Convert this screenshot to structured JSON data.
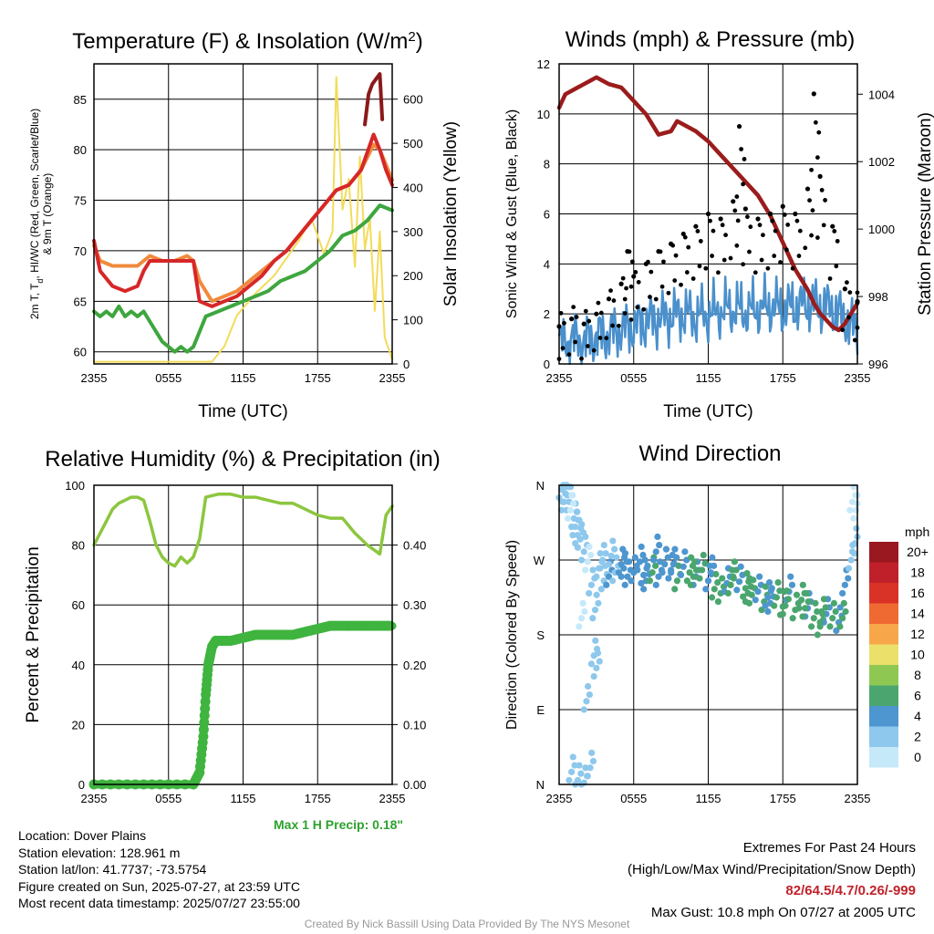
{
  "chart_data": [
    {
      "type": "line",
      "title": "Temperature (F) & Insolation (W/m",
      "title_sup": "2",
      "title_tail": ")",
      "xlabel": "Time (UTC)",
      "ylabel_left_line1": "2m T, T",
      "ylabel_left_sub": "d",
      "ylabel_left_line1_tail": ", HI/WC (Red, Green, Scarlet/Blue)",
      "ylabel_left_line2": "& 9m T (Orange)",
      "ylabel_right": "Solar Insolation (Yellow)",
      "xticks": [
        "2355",
        "0555",
        "1155",
        "1755",
        "2355"
      ],
      "yticks_left": [
        60,
        65,
        70,
        75,
        80,
        85
      ],
      "yticks_right": [
        0,
        100,
        200,
        300,
        400,
        500,
        600
      ],
      "ylim_left": [
        58.8,
        88.5
      ],
      "ylim_right": [
        0,
        680
      ],
      "xlim": [
        0,
        24
      ],
      "grid": true,
      "colors": {
        "temp": "#d62728",
        "dew": "#3ea63e",
        "t9m": "#f08a3c",
        "hi": "#8b1a1a",
        "solar": "#f2dc5a"
      },
      "series": [
        {
          "key": "solar",
          "axis": "right",
          "x": [
            0,
            6.5,
            9.5,
            10.5,
            11.5,
            13,
            14.5,
            15.5,
            16.5,
            17.5,
            18.5,
            19.2,
            19.5,
            20,
            20.5,
            21,
            21.4,
            21.8,
            22.2,
            22.6,
            23,
            23.4,
            24
          ],
          "values": [
            5,
            5,
            5,
            40,
            110,
            160,
            200,
            240,
            280,
            330,
            250,
            300,
            650,
            350,
            420,
            220,
            470,
            260,
            330,
            120,
            300,
            60,
            10
          ]
        },
        {
          "key": "t9m",
          "axis": "left",
          "x": [
            0,
            0.5,
            1.5,
            2.5,
            3.5,
            4.5,
            5.5,
            6.5,
            7.5,
            8,
            8.5,
            9.5,
            10.5,
            11.5,
            12.5,
            13.5,
            14.5,
            15.5,
            16.5,
            17.5,
            18.5,
            19.5,
            20.5,
            21.5,
            22.5,
            23,
            23.5,
            24
          ],
          "values": [
            70.5,
            69,
            68.5,
            68.5,
            68.5,
            69.5,
            69,
            69,
            69.5,
            69,
            67,
            65,
            65.5,
            66,
            67,
            68,
            69,
            70,
            71.5,
            73,
            74.5,
            76,
            76.5,
            78,
            80.5,
            80,
            78.5,
            77
          ]
        },
        {
          "key": "temp",
          "axis": "left",
          "x": [
            0,
            0.5,
            1.5,
            2.5,
            3.5,
            4,
            4.5,
            5.5,
            6.5,
            7.5,
            8,
            8.5,
            9.5,
            10.5,
            11.5,
            12.5,
            13.5,
            14.5,
            15.5,
            16.5,
            17.5,
            18.5,
            19.5,
            20.5,
            21.5,
            22.5,
            23,
            23.5,
            24
          ],
          "values": [
            71,
            68,
            66.5,
            66,
            66.5,
            68,
            69,
            69,
            69,
            69,
            69,
            65,
            64.5,
            65,
            65.5,
            66.5,
            67.5,
            69,
            70,
            71.5,
            73,
            74.5,
            76,
            76.5,
            78,
            81.5,
            80,
            78,
            76.5
          ]
        },
        {
          "key": "dew",
          "axis": "left",
          "x": [
            0,
            0.5,
            1,
            1.5,
            2,
            2.5,
            3,
            3.5,
            4,
            4.5,
            5,
            5.5,
            6,
            6.5,
            7,
            7.5,
            8,
            8.5,
            9,
            10,
            11,
            12,
            13,
            14,
            15,
            16,
            17,
            18,
            19,
            20,
            21,
            22,
            23,
            24
          ],
          "values": [
            64,
            63.5,
            64,
            63.5,
            64.5,
            63.5,
            64,
            63.5,
            64,
            63,
            62,
            61,
            60.5,
            60,
            60.5,
            60,
            60.5,
            62,
            63.5,
            64,
            64.5,
            65,
            65.5,
            66,
            67,
            67.5,
            68,
            69,
            70,
            71.5,
            72,
            73,
            74.5,
            74
          ]
        },
        {
          "key": "hi",
          "axis": "left",
          "x": [
            21.8,
            22.1,
            22.4,
            22.7,
            23,
            23.2
          ],
          "values": [
            82.5,
            85.5,
            86.5,
            87,
            87.5,
            83
          ]
        }
      ]
    },
    {
      "type": "line",
      "title": "Winds (mph) & Pressure (mb)",
      "xlabel": "Time (UTC)",
      "ylabel_left": "Sonic Wind & Gust (Blue, Black)",
      "ylabel_right": "Station Pressure (Maroon)",
      "xticks": [
        "2355",
        "0555",
        "1155",
        "1755",
        "2355"
      ],
      "yticks_left": [
        0,
        2,
        4,
        6,
        8,
        10,
        12
      ],
      "yticks_right": [
        996,
        998,
        1000,
        1002,
        1004
      ],
      "ylim_left": [
        0,
        12
      ],
      "ylim_right": [
        996,
        1004.9
      ],
      "xlim": [
        0,
        24
      ],
      "grid": true,
      "colors": {
        "wind": "#4a90cc",
        "gust": "#000000",
        "pressure": "#9b1c1c"
      },
      "series": [
        {
          "key": "pressure",
          "axis": "right",
          "x": [
            0,
            0.5,
            1,
            1.5,
            2,
            2.5,
            3,
            3.5,
            4,
            5,
            6,
            7,
            8,
            9,
            9.5,
            10,
            11,
            12,
            13,
            14,
            15,
            16,
            17,
            18,
            19,
            20,
            20.5,
            21,
            21.5,
            22,
            22.5,
            23,
            23.5,
            24
          ],
          "values": [
            1003.6,
            1004,
            1004.1,
            1004.2,
            1004.3,
            1004.4,
            1004.5,
            1004.4,
            1004.3,
            1004.2,
            1003.8,
            1003.4,
            1002.8,
            1002.9,
            1003.2,
            1003.1,
            1002.9,
            1002.6,
            1002.2,
            1001.8,
            1001.4,
            1001,
            1000.4,
            999.6,
            998.8,
            998.2,
            997.8,
            997.5,
            997.3,
            997.1,
            997,
            997.2,
            997.5,
            997.8
          ]
        },
        {
          "key": "wind",
          "axis": "left",
          "x": [
            0,
            1,
            2,
            3,
            4,
            5,
            6,
            7,
            8,
            9,
            10,
            11,
            12,
            13,
            14,
            15,
            16,
            17,
            18,
            19,
            20,
            21,
            22,
            23,
            24
          ],
          "values": [
            0.8,
            1.0,
            0.9,
            1.1,
            1.2,
            1.4,
            1.5,
            1.7,
            1.8,
            1.9,
            2.0,
            1.9,
            2.0,
            2.1,
            2.2,
            2.1,
            2.2,
            2.3,
            2.2,
            2.3,
            2.4,
            2.3,
            2.2,
            1.8,
            1.3
          ]
        },
        {
          "key": "gust",
          "axis": "left",
          "x": [
            0,
            1,
            2,
            3,
            4,
            5,
            5.5,
            6,
            7,
            8,
            9,
            10,
            11,
            12,
            13,
            14,
            14.5,
            15,
            16,
            17,
            18,
            19,
            20,
            20.5,
            21,
            22,
            23,
            24
          ],
          "values": [
            1.5,
            1.8,
            1.6,
            2.0,
            2.6,
            3.2,
            4.5,
            3.5,
            4.0,
            4.5,
            4.8,
            5.2,
            5.5,
            6.0,
            5.8,
            6.5,
            9.5,
            6.2,
            5.8,
            6.0,
            6.3,
            6.0,
            7.0,
            10.8,
            7.5,
            5.5,
            3.0,
            2.5
          ]
        }
      ]
    },
    {
      "type": "line",
      "title": "Relative Humidity (%) & Precipitation (in)",
      "xlabel": "",
      "ylabel_left": "Percent & Precipitation",
      "xticks": [
        "2355",
        "0555",
        "1155",
        "1755",
        "2355"
      ],
      "yticks_left": [
        0,
        20,
        40,
        60,
        80,
        100
      ],
      "yticks_right": [
        "0.00",
        "0.10",
        "0.20",
        "0.30",
        "0.40"
      ],
      "ylim_left": [
        0,
        100
      ],
      "ylim_right": [
        0,
        0.5
      ],
      "xlim": [
        0,
        24
      ],
      "grid": true,
      "colors": {
        "rh": "#8cc63f",
        "precip": "#3fb43f"
      },
      "series": [
        {
          "key": "rh",
          "axis": "left",
          "x": [
            0,
            0.5,
            1,
            1.5,
            2,
            2.5,
            3,
            3.5,
            4,
            4.5,
            5,
            5.5,
            6,
            6.5,
            7,
            7.5,
            8,
            8.5,
            9,
            10,
            11,
            12,
            13,
            14,
            15,
            16,
            17,
            18,
            19,
            20,
            21,
            22,
            23,
            23.5,
            24
          ],
          "values": [
            80,
            84,
            88,
            92,
            94,
            95,
            96,
            96,
            95,
            88,
            80,
            76,
            74,
            73,
            76,
            74,
            76,
            82,
            96,
            97,
            97,
            96,
            96,
            95,
            94,
            94,
            92,
            90,
            89,
            89,
            84,
            80,
            77,
            90,
            93
          ]
        },
        {
          "key": "precip",
          "axis": "right",
          "x": [
            0,
            4,
            8,
            8.5,
            8.8,
            9,
            9.2,
            9.5,
            9.8,
            10,
            11,
            12,
            13,
            14,
            15,
            16,
            17,
            18,
            19,
            20,
            21,
            22,
            23,
            24
          ],
          "values": [
            0,
            0,
            0,
            0.02,
            0.08,
            0.15,
            0.2,
            0.23,
            0.24,
            0.24,
            0.24,
            0.245,
            0.25,
            0.25,
            0.25,
            0.25,
            0.255,
            0.26,
            0.265,
            0.265,
            0.265,
            0.265,
            0.265,
            0.265
          ]
        }
      ]
    },
    {
      "type": "scatter",
      "title": "Wind Direction",
      "ylabel_left": "Direction (Colored By Speed)",
      "xticks": [
        "2355",
        "0555",
        "1155",
        "1755",
        "2355"
      ],
      "yticks_left": [
        "N",
        "E",
        "S",
        "W",
        "N"
      ],
      "yticks_values": [
        0,
        90,
        180,
        270,
        360
      ],
      "ylim_left": [
        0,
        360
      ],
      "xlim": [
        0,
        24
      ],
      "grid": true,
      "legend_title": "mph",
      "legend_labels": [
        "0",
        "2",
        "4",
        "6",
        "8",
        "10",
        "12",
        "14",
        "16",
        "18",
        "20+"
      ],
      "legend_colors": [
        "#c6e9fa",
        "#8ec8ec",
        "#4d96cf",
        "#4aa66e",
        "#8ec853",
        "#ebe16a",
        "#f7a74a",
        "#ef6a32",
        "#d93226",
        "#c0202a",
        "#9a1820"
      ],
      "legend_placement": "right",
      "series": [
        {
          "key": "dir",
          "x": [
            0.2,
            0.5,
            0.8,
            1.2,
            1.5,
            1.8,
            2.2,
            2.5,
            0.4,
            0.9,
            1.3,
            1.7,
            2.0,
            2.3,
            2.6,
            2.9,
            3.2,
            3.6,
            4.0,
            4.5,
            5.0,
            5.5,
            6.0,
            6.5,
            7.0,
            7.5,
            8.0,
            8.5,
            9.0,
            9.5,
            10.0,
            10.5,
            11.0,
            11.5,
            12.0,
            12.5,
            13.0,
            13.5,
            14.0,
            14.5,
            15.0,
            15.5,
            16.0,
            16.5,
            17.0,
            17.5,
            18.0,
            18.5,
            19.0,
            19.5,
            20.0,
            20.5,
            21.0,
            21.5,
            22.0,
            22.5,
            23.0,
            23.5,
            23.8,
            3.5,
            4.2,
            5.2,
            6.8,
            7.8,
            9.2,
            10.8,
            12.2,
            13.8,
            15.2,
            16.8,
            18.2,
            19.8,
            21.2,
            22.8,
            2.8,
            3.0,
            1.0,
            1.5,
            2.0,
            23.6,
            23.9
          ],
          "values": [
            355,
            350,
            340,
            320,
            300,
            200,
            100,
            20,
            340,
            330,
            310,
            295,
            280,
            268,
            240,
            210,
            260,
            245,
            250,
            255,
            265,
            250,
            255,
            268,
            245,
            255,
            250,
            265,
            258,
            245,
            262,
            255,
            250,
            258,
            245,
            235,
            230,
            242,
            250,
            244,
            236,
            228,
            232,
            220,
            218,
            225,
            214,
            232,
            210,
            222,
            212,
            200,
            190,
            205,
            200,
            195,
            240,
            270,
            290,
            270,
            275,
            260,
            252,
            280,
            265,
            250,
            255,
            240,
            230,
            225,
            215,
            212,
            205,
            200,
            155,
            140,
            15,
            5,
            2,
            340,
            330
          ],
          "speeds": [
            1,
            1,
            1,
            1,
            1,
            0,
            1,
            1,
            1,
            0,
            1,
            1,
            1,
            0,
            1,
            1,
            1,
            1,
            2,
            1,
            2,
            2,
            2,
            2,
            2,
            3,
            2,
            2,
            2,
            3,
            2,
            3,
            2,
            3,
            2,
            3,
            3,
            2,
            3,
            2,
            3,
            3,
            2,
            3,
            2,
            3,
            3,
            2,
            3,
            3,
            2,
            3,
            3,
            2,
            3,
            2,
            2,
            1,
            1,
            1,
            1,
            2,
            2,
            2,
            2,
            3,
            2,
            3,
            3,
            2,
            3,
            3,
            3,
            3,
            1,
            1,
            1,
            1,
            1,
            0,
            0
          ]
        }
      ]
    }
  ],
  "precip_note": "Max 1 H Precip: 0.18\"",
  "info": {
    "location": "Location: Dover Plains",
    "elevation": "Station elevation: 128.961 m",
    "latlon": "Station lat/lon: 41.7737; -73.5754",
    "created": "Figure created on Sun, 2025-07-27, at 23:59 UTC",
    "recent": "Most recent data timestamp: 2025/07/27 23:55:00"
  },
  "extremes": {
    "heading": "Extremes For Past 24 Hours",
    "subheading": "(High/Low/Max Wind/Precipitation/Snow Depth)",
    "values": "82/64.5/4.7/0.26/-999",
    "gust": "Max Gust: 10.8 mph On 07/27 at 2005 UTC"
  },
  "credit": "Created By Nick Bassill Using Data Provided By The NYS Mesonet"
}
